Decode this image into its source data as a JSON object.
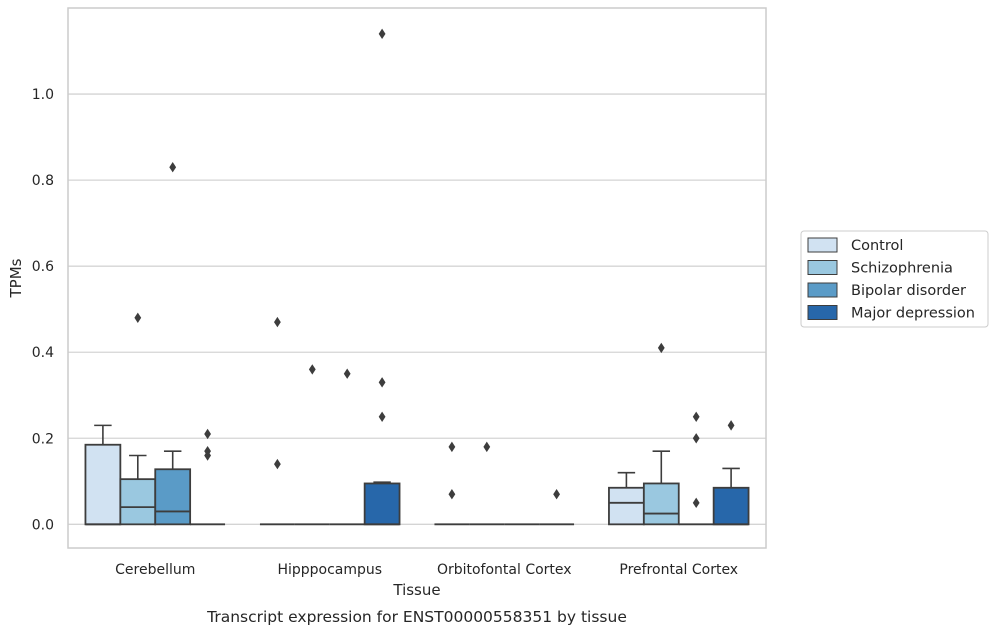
{
  "caption": "Transcript expression for ENST00000558351 by tissue",
  "chart_data": {
    "type": "box",
    "xlabel": "Tissue",
    "ylabel": "TPMs",
    "ylim": [
      -0.055,
      1.2
    ],
    "yticks": [
      "0.0",
      "0.2",
      "0.4",
      "0.6",
      "0.8",
      "1.0"
    ],
    "categories": [
      "Cerebellum",
      "Hipppocampus",
      "Orbitofontal Cortex",
      "Prefrontal Cortex"
    ],
    "grid": true,
    "legend_position": "right",
    "series": [
      {
        "name": "Control",
        "color": "#d1e2f2",
        "boxes": [
          {
            "q1": 0.0,
            "median": 0.0,
            "q3": 0.185,
            "whisker_low": 0.0,
            "whisker_high": 0.23,
            "outliers": []
          },
          {
            "q1": 0.0,
            "median": 0.0,
            "q3": 0.0,
            "whisker_low": 0.0,
            "whisker_high": 0.0,
            "outliers": [
              0.47,
              0.14
            ]
          },
          {
            "q1": 0.0,
            "median": 0.0,
            "q3": 0.0,
            "whisker_low": 0.0,
            "whisker_high": 0.0,
            "outliers": [
              0.18,
              0.07
            ]
          },
          {
            "q1": 0.0,
            "median": 0.05,
            "q3": 0.085,
            "whisker_low": 0.0,
            "whisker_high": 0.12,
            "outliers": []
          }
        ]
      },
      {
        "name": "Schizophrenia",
        "color": "#9ac8e0",
        "boxes": [
          {
            "q1": 0.0,
            "median": 0.04,
            "q3": 0.105,
            "whisker_low": 0.0,
            "whisker_high": 0.16,
            "outliers": [
              0.48
            ]
          },
          {
            "q1": 0.0,
            "median": 0.0,
            "q3": 0.0,
            "whisker_low": 0.0,
            "whisker_high": 0.0,
            "outliers": [
              0.36
            ]
          },
          {
            "q1": 0.0,
            "median": 0.0,
            "q3": 0.0,
            "whisker_low": 0.0,
            "whisker_high": 0.0,
            "outliers": [
              0.18
            ]
          },
          {
            "q1": 0.0,
            "median": 0.025,
            "q3": 0.095,
            "whisker_low": 0.0,
            "whisker_high": 0.17,
            "outliers": [
              0.41
            ]
          }
        ]
      },
      {
        "name": "Bipolar disorder",
        "color": "#5a9bc7",
        "boxes": [
          {
            "q1": 0.0,
            "median": 0.03,
            "q3": 0.128,
            "whisker_low": 0.0,
            "whisker_high": 0.17,
            "outliers": [
              0.83
            ]
          },
          {
            "q1": 0.0,
            "median": 0.0,
            "q3": 0.0,
            "whisker_low": 0.0,
            "whisker_high": 0.0,
            "outliers": [
              0.35
            ]
          },
          {
            "q1": 0.0,
            "median": 0.0,
            "q3": 0.0,
            "whisker_low": 0.0,
            "whisker_high": 0.0,
            "outliers": []
          },
          {
            "q1": 0.0,
            "median": 0.0,
            "q3": 0.0,
            "whisker_low": 0.0,
            "whisker_high": 0.0,
            "outliers": [
              0.25,
              0.2,
              0.05
            ]
          }
        ]
      },
      {
        "name": "Major depression",
        "color": "#2767aa",
        "boxes": [
          {
            "q1": 0.0,
            "median": 0.0,
            "q3": 0.0,
            "whisker_low": 0.0,
            "whisker_high": 0.0,
            "outliers": [
              0.21,
              0.17,
              0.16
            ]
          },
          {
            "q1": 0.0,
            "median": 0.0,
            "q3": 0.095,
            "whisker_low": 0.0,
            "whisker_high": 0.098,
            "outliers": [
              1.14,
              0.33,
              0.25
            ]
          },
          {
            "q1": 0.0,
            "median": 0.0,
            "q3": 0.0,
            "whisker_low": 0.0,
            "whisker_high": 0.0,
            "outliers": [
              0.07
            ]
          },
          {
            "q1": 0.0,
            "median": 0.0,
            "q3": 0.085,
            "whisker_low": 0.0,
            "whisker_high": 0.13,
            "outliers": [
              0.23
            ]
          }
        ]
      }
    ]
  }
}
